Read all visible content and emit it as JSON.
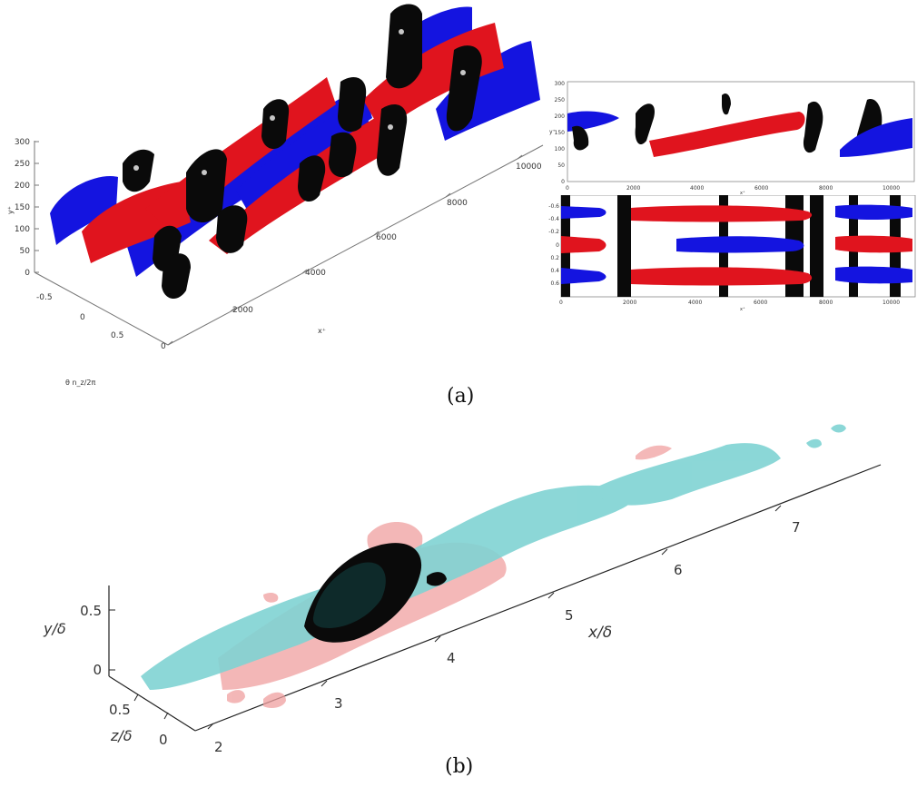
{
  "figure": {
    "panel_a": {
      "caption": "(a)",
      "main_plot": {
        "y_label": "y⁺",
        "y_ticks": [
          "0",
          "50",
          "100",
          "150",
          "200",
          "250",
          "300"
        ],
        "x_label": "x⁺",
        "x_ticks": [
          "0",
          "2000",
          "4000",
          "6000",
          "8000",
          "10000"
        ],
        "z_label": "θ n_z/2π",
        "z_ticks": [
          "-0.5",
          "0",
          "0.5"
        ]
      },
      "side_view": {
        "y_label": "y⁺",
        "y_ticks": [
          "0",
          "50",
          "100",
          "150",
          "200",
          "250",
          "300"
        ],
        "x_ticks": [
          "0",
          "2000",
          "4000",
          "6000",
          "8000",
          "10000"
        ],
        "x_label": "x⁺"
      },
      "top_view": {
        "y_ticks": [
          "-0.6",
          "-0.4",
          "-0.2",
          "0",
          "0.2",
          "0.4",
          "0.6"
        ],
        "x_ticks": [
          "0",
          "2000",
          "4000",
          "6000",
          "8000",
          "10000"
        ],
        "x_label": "x⁺"
      },
      "colors": {
        "high": "#e0141e",
        "low": "#1414e0",
        "vortex": "#0a0a0a"
      }
    },
    "panel_b": {
      "caption": "(b)",
      "x_label": "x/δ",
      "x_ticks": [
        "2",
        "3",
        "4",
        "5",
        "6",
        "7"
      ],
      "y_label": "y/δ",
      "y_ticks": [
        "0",
        "0.5"
      ],
      "z_label": "z/δ",
      "z_ticks": [
        "0",
        "0.5"
      ],
      "colors": {
        "cyan": "#7fd3d3",
        "pink": "#f0a0a0",
        "dark": "#0e2a2a"
      }
    }
  }
}
